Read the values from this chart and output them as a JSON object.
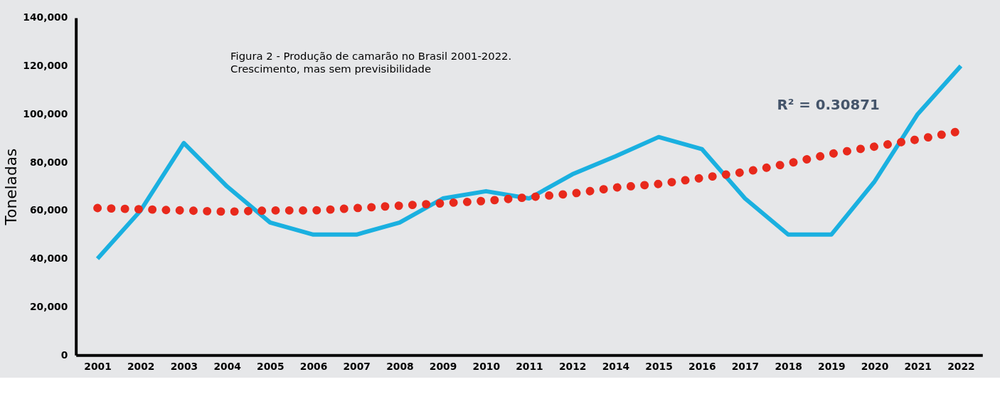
{
  "chart_data": {
    "type": "line",
    "title": "Figura 2 - Produção de camarão no Brasil 2001-2022.",
    "subtitle": "Crescimento, mas sem previsibilidade",
    "ylabel": "Toneladas",
    "categories": [
      "2001",
      "2002",
      "2003",
      "2004",
      "2005",
      "2006",
      "2007",
      "2008",
      "2009",
      "2010",
      "2011",
      "2012",
      "2014",
      "2015",
      "2016",
      "2017",
      "2018",
      "2019",
      "2020",
      "2021",
      "2022"
    ],
    "series": [
      {
        "color": "#1ab0e0",
        "line_style": "solid",
        "values": [
          40000,
          60000,
          88000,
          70000,
          55000,
          50000,
          50000,
          55000,
          65000,
          68000,
          65000,
          75000,
          82500,
          90500,
          85500,
          65000,
          50000,
          50000,
          72000,
          100000,
          120000
        ]
      },
      {
        "color": "#e8291c",
        "line_style": "dotted",
        "values": [
          61000,
          60500,
          60000,
          59500,
          60000,
          60000,
          61000,
          62000,
          63000,
          64000,
          65500,
          67000,
          69500,
          71000,
          73500,
          76000,
          79500,
          83500,
          86500,
          89500,
          93000
        ]
      }
    ],
    "ylim": [
      0,
      140000
    ],
    "yticks": [
      0,
      {
        "value": 20000,
        "label": "20,000"
      },
      {
        "value": 40000,
        "label": "40,000"
      },
      {
        "value": 60000,
        "label": "60,000"
      },
      {
        "value": 80000,
        "label": "80,000"
      },
      {
        "value": 100000,
        "label": "100,000"
      },
      {
        "value": 120000,
        "label": "120,000"
      },
      {
        "value": 140000,
        "label": "140,000"
      }
    ],
    "grid": false,
    "marker": "none",
    "annotations": [
      "R² = 0.30871"
    ]
  }
}
